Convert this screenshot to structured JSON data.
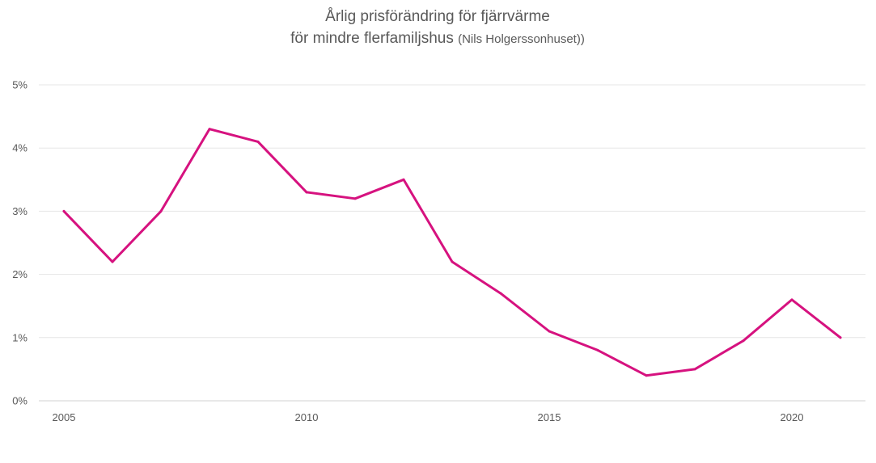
{
  "chart_data": {
    "type": "line",
    "title_line1": "Årlig prisförändring för fjärrvärme",
    "title_line2_main": "för mindre flerfamiljshus ",
    "title_line2_paren": "(Nils Holgerssonhuset))",
    "x": [
      2005,
      2006,
      2007,
      2008,
      2009,
      2010,
      2011,
      2012,
      2013,
      2014,
      2015,
      2016,
      2017,
      2018,
      2019,
      2020,
      2021
    ],
    "series": [
      {
        "values": [
          3.0,
          2.2,
          3.0,
          4.3,
          4.1,
          3.3,
          3.2,
          3.5,
          2.2,
          1.7,
          1.1,
          0.8,
          0.4,
          0.5,
          0.95,
          1.6,
          1.0
        ],
        "color": "#d6127f"
      }
    ],
    "x_ticks": [
      2005,
      2010,
      2015,
      2020
    ],
    "x_tick_labels": [
      "2005",
      "2010",
      "2015",
      "2020"
    ],
    "y_ticks": [
      0,
      1,
      2,
      3,
      4,
      5
    ],
    "y_tick_labels": [
      "0%",
      "1%",
      "2%",
      "3%",
      "4%",
      "5%"
    ],
    "ylim": [
      0,
      5
    ],
    "xlim": [
      2005,
      2021
    ],
    "grid": true,
    "legend": "none"
  }
}
